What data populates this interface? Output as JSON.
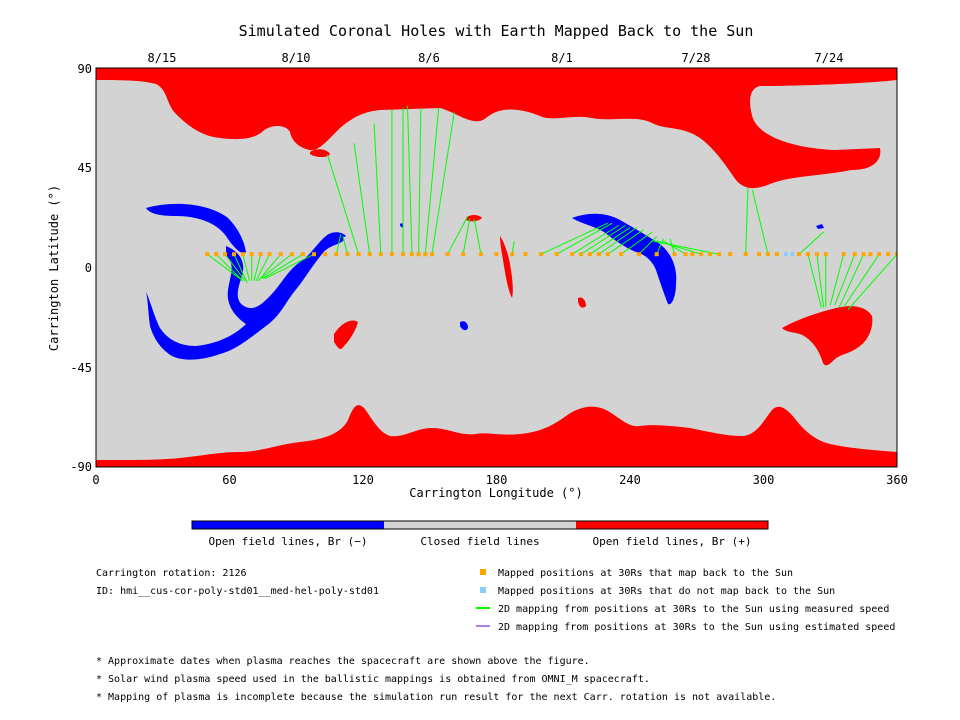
{
  "chart_data": {
    "type": "scatter",
    "title": "Simulated Coronal Holes with Earth Mapped Back to the Sun",
    "xlabel": "Carrington Longitude (°)",
    "ylabel": "Carrington Latitude (°)",
    "xlim": [
      0,
      360
    ],
    "ylim": [
      -90,
      90
    ],
    "xticks": [
      "0",
      "60",
      "120",
      "180",
      "240",
      "300",
      "360"
    ],
    "yticks": [
      "90",
      "45",
      "0",
      "-45",
      "-90"
    ],
    "top_axis_dates": [
      {
        "label": "8/15",
        "lon": 30
      },
      {
        "label": "8/10",
        "lon": 90
      },
      {
        "label": "8/6",
        "lon": 150
      },
      {
        "label": "8/1",
        "lon": 210
      },
      {
        "label": "7/28",
        "lon": 270
      },
      {
        "label": "7/24",
        "lon": 330
      }
    ],
    "mapped_positions_30rs": {
      "lat": 6,
      "map_back": [
        50,
        54,
        58,
        62,
        66,
        70,
        74,
        78,
        83,
        88,
        93,
        98,
        103,
        108,
        113,
        118,
        123,
        128,
        133,
        138,
        142,
        145,
        148,
        151,
        158,
        165,
        173,
        180,
        187,
        193,
        200,
        207,
        214,
        218,
        222,
        226,
        230,
        236,
        244,
        252,
        260,
        265,
        268,
        272,
        276,
        280,
        285,
        292,
        298,
        302,
        306,
        316,
        320,
        324,
        328,
        336,
        341,
        345,
        348,
        352,
        356,
        360
      ],
      "no_map_back": [
        310,
        313
      ]
    },
    "mapping_lines_measured": [
      {
        "from": [
          50,
          6
        ],
        "to": [
          66,
          -6
        ]
      },
      {
        "from": [
          54,
          6
        ],
        "to": [
          66,
          -6
        ]
      },
      {
        "from": [
          58,
          6
        ],
        "to": [
          67,
          -6
        ]
      },
      {
        "from": [
          62,
          6
        ],
        "to": [
          68,
          -7
        ]
      },
      {
        "from": [
          66,
          6
        ],
        "to": [
          69,
          -6
        ]
      },
      {
        "from": [
          70,
          6
        ],
        "to": [
          70,
          -6
        ]
      },
      {
        "from": [
          74,
          6
        ],
        "to": [
          71,
          -6
        ]
      },
      {
        "from": [
          78,
          6
        ],
        "to": [
          72,
          -6
        ]
      },
      {
        "from": [
          83,
          6
        ],
        "to": [
          73,
          -6
        ]
      },
      {
        "from": [
          88,
          6
        ],
        "to": [
          74,
          -5
        ]
      },
      {
        "from": [
          93,
          6
        ],
        "to": [
          75,
          -5
        ]
      },
      {
        "from": [
          98,
          6
        ],
        "to": [
          76,
          -5
        ]
      },
      {
        "from": [
          108,
          6
        ],
        "to": [
          110,
          15
        ]
      },
      {
        "from": [
          113,
          6
        ],
        "to": [
          111,
          14
        ]
      },
      {
        "from": [
          118,
          6
        ],
        "to": [
          104,
          51
        ]
      },
      {
        "from": [
          123,
          6
        ],
        "to": [
          116,
          56
        ]
      },
      {
        "from": [
          128,
          6
        ],
        "to": [
          125,
          65
        ]
      },
      {
        "from": [
          133,
          6
        ],
        "to": [
          133,
          71
        ]
      },
      {
        "from": [
          138,
          6
        ],
        "to": [
          138,
          72
        ]
      },
      {
        "from": [
          142,
          6
        ],
        "to": [
          140,
          73
        ]
      },
      {
        "from": [
          145,
          6
        ],
        "to": [
          146,
          72
        ]
      },
      {
        "from": [
          148,
          6
        ],
        "to": [
          154,
          72
        ]
      },
      {
        "from": [
          151,
          6
        ],
        "to": [
          161,
          70
        ]
      },
      {
        "from": [
          158,
          6
        ],
        "to": [
          167,
          23
        ]
      },
      {
        "from": [
          165,
          6
        ],
        "to": [
          168,
          22
        ]
      },
      {
        "from": [
          173,
          6
        ],
        "to": [
          170,
          22
        ]
      },
      {
        "from": [
          187,
          6
        ],
        "to": [
          188,
          12
        ]
      },
      {
        "from": [
          200,
          6
        ],
        "to": [
          230,
          20
        ]
      },
      {
        "from": [
          207,
          6
        ],
        "to": [
          232,
          20
        ]
      },
      {
        "from": [
          214,
          6
        ],
        "to": [
          235,
          19
        ]
      },
      {
        "from": [
          218,
          6
        ],
        "to": [
          238,
          19
        ]
      },
      {
        "from": [
          222,
          6
        ],
        "to": [
          240,
          18
        ]
      },
      {
        "from": [
          226,
          6
        ],
        "to": [
          243,
          18
        ]
      },
      {
        "from": [
          230,
          6
        ],
        "to": [
          246,
          17
        ]
      },
      {
        "from": [
          236,
          6
        ],
        "to": [
          250,
          16
        ]
      },
      {
        "from": [
          244,
          6
        ],
        "to": [
          252,
          14
        ]
      },
      {
        "from": [
          252,
          6
        ],
        "to": [
          255,
          13
        ]
      },
      {
        "from": [
          260,
          6
        ],
        "to": [
          258,
          13
        ]
      },
      {
        "from": [
          265,
          6
        ],
        "to": [
          255,
          12
        ]
      },
      {
        "from": [
          272,
          6
        ],
        "to": [
          252,
          12
        ]
      },
      {
        "from": [
          280,
          6
        ],
        "to": [
          250,
          12
        ]
      },
      {
        "from": [
          292,
          6
        ],
        "to": [
          293,
          36
        ]
      },
      {
        "from": [
          302,
          6
        ],
        "to": [
          295,
          35
        ]
      },
      {
        "from": [
          316,
          6
        ],
        "to": [
          327,
          16
        ]
      },
      {
        "from": [
          320,
          6
        ],
        "to": [
          326,
          -18
        ]
      },
      {
        "from": [
          324,
          6
        ],
        "to": [
          327,
          -18
        ]
      },
      {
        "from": [
          328,
          6
        ],
        "to": [
          328,
          -18
        ]
      },
      {
        "from": [
          336,
          6
        ],
        "to": [
          330,
          -17
        ]
      },
      {
        "from": [
          341,
          6
        ],
        "to": [
          332,
          -17
        ]
      },
      {
        "from": [
          345,
          6
        ],
        "to": [
          334,
          -18
        ]
      },
      {
        "from": [
          352,
          6
        ],
        "to": [
          336,
          -18
        ]
      },
      {
        "from": [
          360,
          6
        ],
        "to": [
          338,
          -19
        ]
      }
    ],
    "colorbar": {
      "segments": [
        {
          "label": "Open field lines, Br (−)",
          "color": "#0000ff"
        },
        {
          "label": "Closed field lines",
          "color": "#d3d3d3"
        },
        {
          "label": "Open field lines, Br (+)",
          "color": "#ff0000"
        }
      ]
    },
    "legend": [
      {
        "label": "Mapped positions at 30Rs that map back to the Sun",
        "color": "#ffa500",
        "marker": "square"
      },
      {
        "label": "Mapped positions at 30Rs that do not map back to the Sun",
        "color": "#87cefa",
        "marker": "square"
      },
      {
        "label": "2D mapping from positions at 30Rs to the Sun using measured speed",
        "color": "#00ff00",
        "marker": "line"
      },
      {
        "label": "2D mapping from positions at 30Rs to the Sun using estimated speed",
        "color": "#b07fe8",
        "marker": "line"
      }
    ],
    "legend_placement": "bottom-right"
  },
  "info": {
    "rotation": "Carrington rotation: 2126",
    "id": "ID: hmi__cus-cor-poly-std01__med-hel-poly-std01"
  },
  "footnotes": [
    "* Approximate dates when plasma reaches the spacecraft are shown above the figure.",
    "* Solar wind plasma speed used in the ballistic mappings is obtained from OMNI_M spacecraft.",
    "* Mapping of plasma is incomplete because the simulation run result for the next Carr. rotation is not available."
  ],
  "colors": {
    "closed": "#d3d3d3",
    "positive": "#ff0000",
    "negative": "#0000ff",
    "measured_line": "#00ff00",
    "estimated_line": "#b07fe8",
    "map_back_marker": "#ffa500",
    "no_map_back_marker": "#87cefa"
  }
}
